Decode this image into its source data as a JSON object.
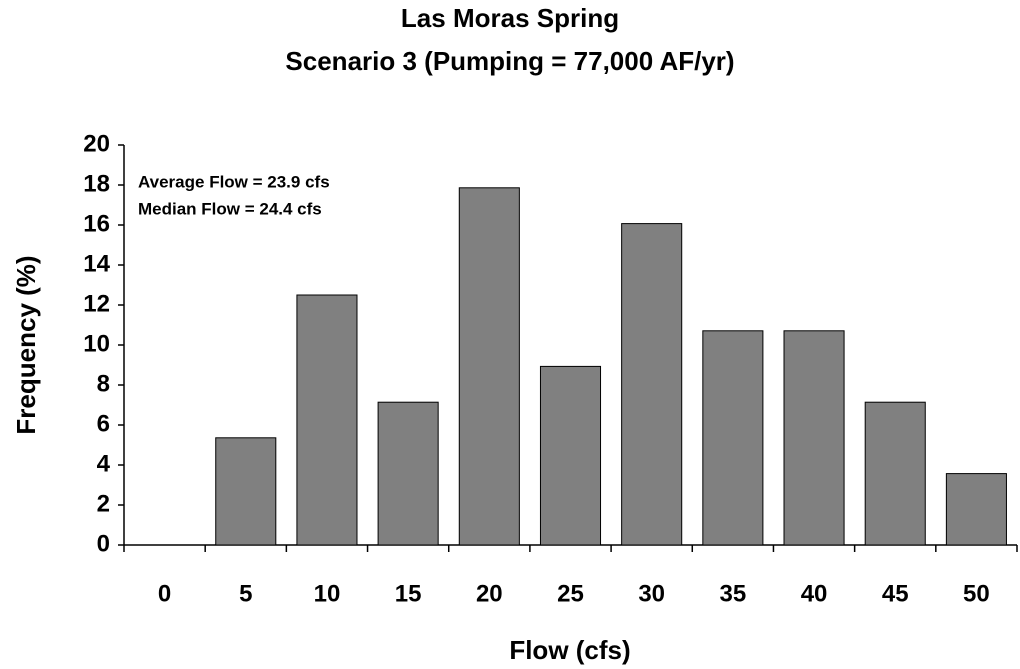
{
  "chart_data": {
    "type": "bar",
    "title": "Las Moras Spring",
    "subtitle": "Scenario 3 (Pumping = 77,000 AF/yr)",
    "x_label": "Flow (cfs)",
    "y_label": "Frequency (%)",
    "annotations": [
      "Average Flow = 23.9 cfs",
      "Median Flow = 24.4 cfs"
    ],
    "categories": [
      "0",
      "5",
      "10",
      "15",
      "20",
      "25",
      "30",
      "35",
      "40",
      "45",
      "50"
    ],
    "values": [
      0,
      5.36,
      12.5,
      7.14,
      17.86,
      8.93,
      16.07,
      10.71,
      10.71,
      7.14,
      3.57
    ],
    "color": "#808080",
    "ylim": [
      0,
      20
    ],
    "yticks": [
      0,
      2,
      4,
      6,
      8,
      10,
      12,
      14,
      16,
      18,
      20
    ],
    "grid": false
  }
}
